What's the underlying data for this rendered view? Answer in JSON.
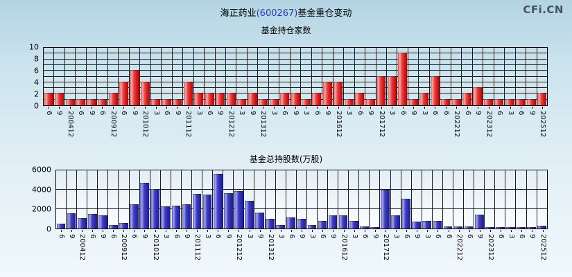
{
  "header": {
    "title_company": "海正药业",
    "title_code": "(600267)",
    "title_suffix": "基金重仓变动",
    "logo_text": "CFi.CN"
  },
  "colors": {
    "title_code_blue": "#2238c8",
    "red_bar_main": "#e03030",
    "blue_bar_main": "#3c3cbe",
    "gridline": "#1b1b1b",
    "background_top": "#b3d4e3",
    "background_bottom": "#f0f8fb"
  },
  "chart_data": [
    {
      "type": "bar",
      "title": "基金持仓家数",
      "categories": [
        "6",
        "9",
        "200412",
        "6",
        "9",
        "6",
        "200912",
        "6",
        "9",
        "201012",
        "3",
        "6",
        "9",
        "201112",
        "3",
        "6",
        "9",
        "201212",
        "3",
        "9",
        "201312",
        "3",
        "6",
        "9",
        "3",
        "6",
        "9",
        "201612",
        "3",
        "6",
        "9",
        "201712",
        "3",
        "6",
        "9",
        "3",
        "6",
        "6",
        "202212",
        "6",
        "9",
        "202312",
        "6",
        "3",
        "6",
        "9",
        "202512"
      ],
      "values": [
        2,
        2,
        1,
        1,
        1,
        1,
        2,
        4,
        6,
        4,
        1,
        1,
        1,
        4,
        2,
        2,
        2,
        2,
        1,
        2,
        1,
        1,
        2,
        2,
        1,
        2,
        4,
        4,
        1,
        2,
        1,
        5,
        5,
        9,
        1,
        2,
        5,
        1,
        1,
        2,
        3,
        1,
        1,
        1,
        1,
        1,
        2
      ],
      "xlabel": "",
      "ylabel": "",
      "ylim": [
        0,
        10
      ],
      "yticks": [
        0,
        2,
        4,
        6,
        8,
        10
      ],
      "grid_y_values": [
        1,
        2,
        3,
        4,
        5,
        6,
        7,
        8,
        9
      ],
      "grid": "on",
      "legend": "none",
      "bar_color": "red"
    },
    {
      "type": "bar",
      "title": "基金总持股数(万股)",
      "categories": [
        "6",
        "9",
        "200412",
        "6",
        "9",
        "6",
        "200912",
        "6",
        "9",
        "201012",
        "3",
        "6",
        "9",
        "201112",
        "3",
        "6",
        "9",
        "201212",
        "3",
        "9",
        "201312",
        "3",
        "6",
        "9",
        "3",
        "6",
        "9",
        "201612",
        "3",
        "6",
        "9",
        "201712",
        "3",
        "6",
        "9",
        "3",
        "6",
        "6",
        "202212",
        "6",
        "9",
        "202312",
        "6",
        "3",
        "6",
        "9",
        "202512"
      ],
      "values": [
        400,
        1500,
        1000,
        1400,
        1300,
        300,
        500,
        2400,
        4650,
        4000,
        2200,
        2300,
        2400,
        3500,
        3450,
        5600,
        3600,
        3800,
        2800,
        1550,
        950,
        270,
        1100,
        900,
        300,
        750,
        1280,
        1280,
        750,
        150,
        100,
        3950,
        1280,
        3000,
        630,
        750,
        750,
        150,
        150,
        150,
        1350,
        100,
        100,
        100,
        100,
        100,
        200
      ],
      "xlabel": "",
      "ylabel": "万股",
      "ylim": [
        0,
        6000
      ],
      "yticks": [
        0,
        2000,
        4000,
        6000
      ],
      "grid_y_values": [
        2000,
        4000
      ],
      "grid": "on",
      "legend": "none",
      "bar_color": "blue"
    }
  ]
}
